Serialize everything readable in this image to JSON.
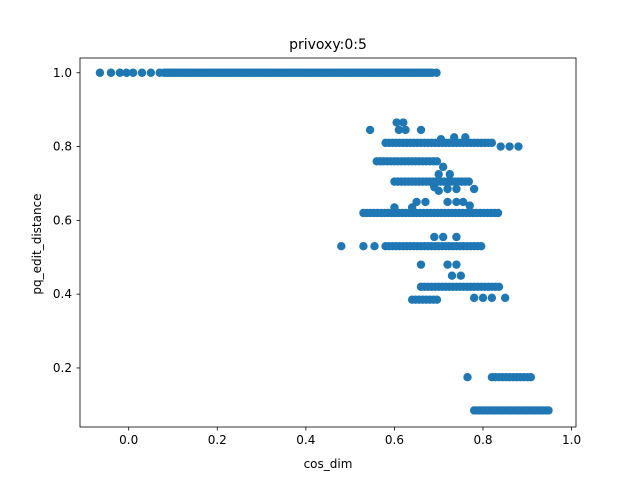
{
  "chart_data": {
    "type": "scatter",
    "title": "privoxy:0:5",
    "xlabel": "cos_dim",
    "ylabel": "pq_edit_distance",
    "xlim": [
      -0.11,
      1.01
    ],
    "ylim": [
      0.04,
      1.04
    ],
    "xticks": [
      0.0,
      0.2,
      0.4,
      0.6,
      0.8,
      1.0
    ],
    "xtick_labels": [
      "0.0",
      "0.2",
      "0.4",
      "0.6",
      "0.8",
      "1.0"
    ],
    "yticks": [
      0.2,
      0.4,
      0.6,
      0.8,
      1.0
    ],
    "ytick_labels": [
      "0.2",
      "0.4",
      "0.6",
      "0.8",
      "1.0"
    ],
    "grid": false,
    "marker_color": "#1f77b4",
    "series": [
      {
        "clusters": [
          {
            "y": 1.0,
            "x_from": 0.08,
            "x_to": 0.68,
            "step": 0.005
          },
          {
            "y": 0.81,
            "x_from": 0.58,
            "x_to": 0.82,
            "step": 0.008
          },
          {
            "y": 0.76,
            "x_from": 0.56,
            "x_to": 0.7,
            "step": 0.008
          },
          {
            "y": 0.705,
            "x_from": 0.6,
            "x_to": 0.77,
            "step": 0.008
          },
          {
            "y": 0.62,
            "x_from": 0.53,
            "x_to": 0.84,
            "step": 0.008
          },
          {
            "y": 0.53,
            "x_from": 0.58,
            "x_to": 0.8,
            "step": 0.008
          },
          {
            "y": 0.42,
            "x_from": 0.66,
            "x_to": 0.84,
            "step": 0.008
          },
          {
            "y": 0.385,
            "x_from": 0.64,
            "x_to": 0.7,
            "step": 0.008
          },
          {
            "y": 0.175,
            "x_from": 0.82,
            "x_to": 0.91,
            "step": 0.008
          },
          {
            "y": 0.085,
            "x_from": 0.78,
            "x_to": 0.95,
            "step": 0.006
          }
        ],
        "points": [
          [
            -0.065,
            1.0
          ],
          [
            -0.04,
            1.0
          ],
          [
            -0.02,
            1.0
          ],
          [
            -0.005,
            1.0
          ],
          [
            0.01,
            1.0
          ],
          [
            0.03,
            1.0
          ],
          [
            0.05,
            1.0
          ],
          [
            0.07,
            1.0
          ],
          [
            0.685,
            1.0
          ],
          [
            0.695,
            1.0
          ],
          [
            0.605,
            0.865
          ],
          [
            0.62,
            0.865
          ],
          [
            0.61,
            0.845
          ],
          [
            0.625,
            0.845
          ],
          [
            0.66,
            0.845
          ],
          [
            0.545,
            0.845
          ],
          [
            0.735,
            0.825
          ],
          [
            0.76,
            0.825
          ],
          [
            0.705,
            0.82
          ],
          [
            0.84,
            0.8
          ],
          [
            0.88,
            0.8
          ],
          [
            0.86,
            0.8
          ],
          [
            0.71,
            0.745
          ],
          [
            0.725,
            0.725
          ],
          [
            0.7,
            0.725
          ],
          [
            0.69,
            0.69
          ],
          [
            0.72,
            0.685
          ],
          [
            0.74,
            0.685
          ],
          [
            0.78,
            0.685
          ],
          [
            0.7,
            0.68
          ],
          [
            0.65,
            0.65
          ],
          [
            0.67,
            0.65
          ],
          [
            0.72,
            0.65
          ],
          [
            0.74,
            0.65
          ],
          [
            0.755,
            0.65
          ],
          [
            0.6,
            0.635
          ],
          [
            0.64,
            0.635
          ],
          [
            0.77,
            0.64
          ],
          [
            0.48,
            0.53
          ],
          [
            0.53,
            0.53
          ],
          [
            0.555,
            0.53
          ],
          [
            0.69,
            0.555
          ],
          [
            0.71,
            0.555
          ],
          [
            0.74,
            0.555
          ],
          [
            0.66,
            0.48
          ],
          [
            0.72,
            0.48
          ],
          [
            0.74,
            0.48
          ],
          [
            0.73,
            0.45
          ],
          [
            0.75,
            0.45
          ],
          [
            0.78,
            0.39
          ],
          [
            0.8,
            0.39
          ],
          [
            0.82,
            0.39
          ],
          [
            0.85,
            0.39
          ],
          [
            0.765,
            0.175
          ]
        ]
      }
    ]
  }
}
